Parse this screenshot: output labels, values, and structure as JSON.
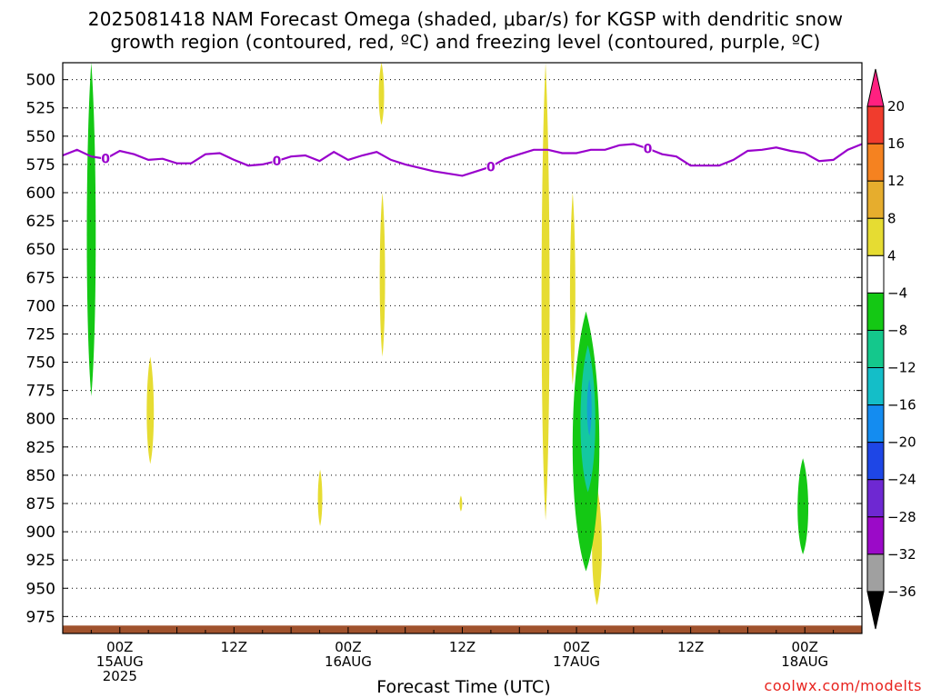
{
  "header": {
    "title_line1": "2025081418 NAM Forecast Omega (shaded, μbar/s) for KGSP with dendritic snow",
    "title_line2": "growth region (contoured, red, ºC) and freezing level (contoured, purple, ºC)"
  },
  "footer": {
    "xlabel": "Forecast Time (UTC)",
    "credit": "coolwx.com/modelts"
  },
  "colors": {
    "freezing_level": "#9900cc",
    "ground": "#a0522d",
    "positive_omega": "#e6dc32",
    "weak_negative_omega": "#14c814",
    "moderate_negative_omega": "#14c8a0",
    "strong_negative_omega": "#14a0d2"
  },
  "chart_data": {
    "type": "heatmap",
    "title": "2025081418 NAM Forecast Omega (shaded, μbar/s) for KGSP with dendritic snow growth region (contoured, red, ºC) and freezing level (contoured, purple, ºC)",
    "xlabel": "Forecast Time (UTC)",
    "ylabel": "",
    "x_unit": "forecast hour from 2025-08-14 18Z",
    "xlim": [
      0,
      84
    ],
    "ylim": [
      990,
      485
    ],
    "y_scale": "linear pressure (hPa), inverted",
    "grid": true,
    "y_ticks": [
      500,
      525,
      550,
      575,
      600,
      625,
      650,
      675,
      700,
      725,
      750,
      775,
      800,
      825,
      850,
      875,
      900,
      925,
      950,
      975
    ],
    "x_ticks": [
      {
        "hour": 6,
        "lines": [
          "00Z",
          "15AUG",
          "2025"
        ]
      },
      {
        "hour": 18,
        "lines": [
          "12Z"
        ]
      },
      {
        "hour": 30,
        "lines": [
          "00Z",
          "16AUG"
        ]
      },
      {
        "hour": 42,
        "lines": [
          "12Z"
        ]
      },
      {
        "hour": 54,
        "lines": [
          "00Z",
          "17AUG"
        ]
      },
      {
        "hour": 66,
        "lines": [
          "12Z"
        ]
      },
      {
        "hour": 78,
        "lines": [
          "00Z",
          "18AUG"
        ]
      }
    ],
    "colorbar": {
      "unit": "μbar/s",
      "labels": [
        "20",
        "16",
        "12",
        "8",
        "4",
        "−4",
        "−8",
        "−12",
        "−16",
        "−20",
        "−24",
        "−28",
        "−32",
        "−36"
      ],
      "colors": [
        "#ff2080",
        "#f03c2d",
        "#f58220",
        "#e6ad2d",
        "#e6dc32",
        "#ffffff",
        "#14c814",
        "#14c88c",
        "#14bec8",
        "#148cf0",
        "#1e46e6",
        "#6e28d2",
        "#9b0ac8",
        "#a0a0a0",
        "#000000"
      ]
    },
    "freezing_level_contour": {
      "label": "0",
      "hour": [
        0,
        1.5,
        3,
        4.5,
        6,
        7.5,
        9,
        10.5,
        12,
        13.5,
        15,
        16.5,
        18,
        19.5,
        21,
        22.5,
        24,
        25.5,
        27,
        28.5,
        30,
        31.5,
        33,
        34.5,
        36,
        37.5,
        39,
        40.5,
        42,
        43.5,
        45,
        46.5,
        48,
        49.5,
        51,
        52.5,
        54,
        55.5,
        57,
        58.5,
        60,
        61.5,
        63,
        64.5,
        66,
        67.5,
        69,
        70.5,
        72,
        73.5,
        75,
        76.5,
        78,
        79.5,
        81,
        82.5,
        84
      ],
      "pressure": [
        567,
        562,
        568,
        570,
        563,
        566,
        571,
        570,
        574,
        574,
        566,
        565,
        571,
        576,
        575,
        572,
        568,
        567,
        572,
        564,
        571,
        567,
        564,
        571,
        575,
        578,
        581,
        583,
        585,
        581,
        577,
        570,
        566,
        562,
        562,
        565,
        565,
        562,
        562,
        558,
        557,
        561,
        566,
        568,
        576,
        576,
        576,
        571,
        563,
        562,
        560,
        563,
        565,
        572,
        571,
        562,
        557
      ]
    },
    "omega_regions": [
      {
        "sign": "negative",
        "band": "-4 to -8",
        "hour": [
          2.5,
          3.5
        ],
        "pressure": [
          485,
          780
        ]
      },
      {
        "sign": "positive",
        "band": "4 to 8",
        "hour": [
          8.8,
          9.6
        ],
        "pressure": [
          745,
          840
        ]
      },
      {
        "sign": "positive",
        "band": "4 to 8",
        "hour": [
          26.8,
          27.3
        ],
        "pressure": [
          845,
          895
        ]
      },
      {
        "sign": "positive",
        "band": "4 to 8",
        "hour": [
          33.2,
          33.8
        ],
        "pressure": [
          485,
          540
        ]
      },
      {
        "sign": "positive",
        "band": "4 to 8",
        "hour": [
          33.3,
          33.9
        ],
        "pressure": [
          600,
          745
        ]
      },
      {
        "sign": "positive",
        "band": "4 to 8",
        "hour": [
          41.7,
          42.0
        ],
        "pressure": [
          868,
          882
        ]
      },
      {
        "sign": "positive",
        "band": "4 to 8",
        "hour": [
          50.3,
          51.2
        ],
        "pressure": [
          485,
          890
        ]
      },
      {
        "sign": "positive",
        "band": "4 to 8",
        "hour": [
          53.3,
          53.9
        ],
        "pressure": [
          600,
          770
        ]
      },
      {
        "sign": "positive",
        "band": "4 to 8",
        "hour": [
          55.6,
          56.7
        ],
        "pressure": [
          860,
          965
        ]
      },
      {
        "sign": "negative",
        "band": "-4 to -16",
        "hour": [
          53.5,
          56.5
        ],
        "pressure": [
          705,
          935
        ]
      },
      {
        "sign": "negative",
        "band": "-4 to -8",
        "hour": [
          77.2,
          78.4
        ],
        "pressure": [
          835,
          920
        ]
      }
    ]
  }
}
